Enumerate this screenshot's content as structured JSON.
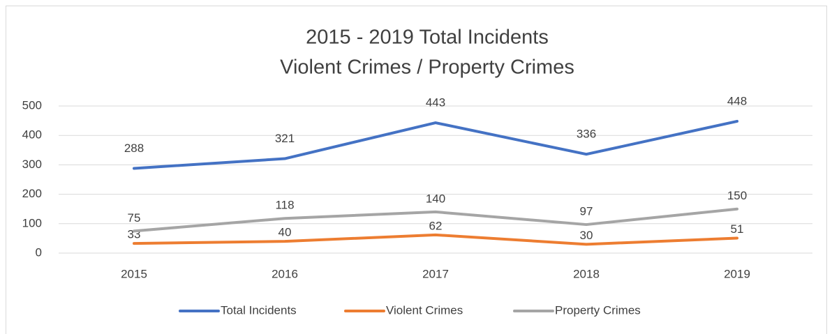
{
  "chart_data": {
    "type": "line",
    "title": "2015 - 2019 Total Incidents",
    "subtitle": "Violent Crimes / Property Crimes",
    "categories": [
      "2015",
      "2016",
      "2017",
      "2018",
      "2019"
    ],
    "series": [
      {
        "name": "Total Incidents",
        "color": "#4472c4",
        "values": [
          288,
          321,
          443,
          336,
          448
        ]
      },
      {
        "name": "Violent Crimes",
        "color": "#ed7d31",
        "values": [
          33,
          40,
          62,
          30,
          51
        ]
      },
      {
        "name": "Property Crimes",
        "color": "#a5a5a5",
        "values": [
          75,
          118,
          140,
          97,
          150
        ]
      }
    ],
    "ylim": [
      0,
      500
    ],
    "yticks": [
      0,
      100,
      200,
      300,
      400,
      500
    ],
    "grid": true,
    "legend": "bottom"
  }
}
